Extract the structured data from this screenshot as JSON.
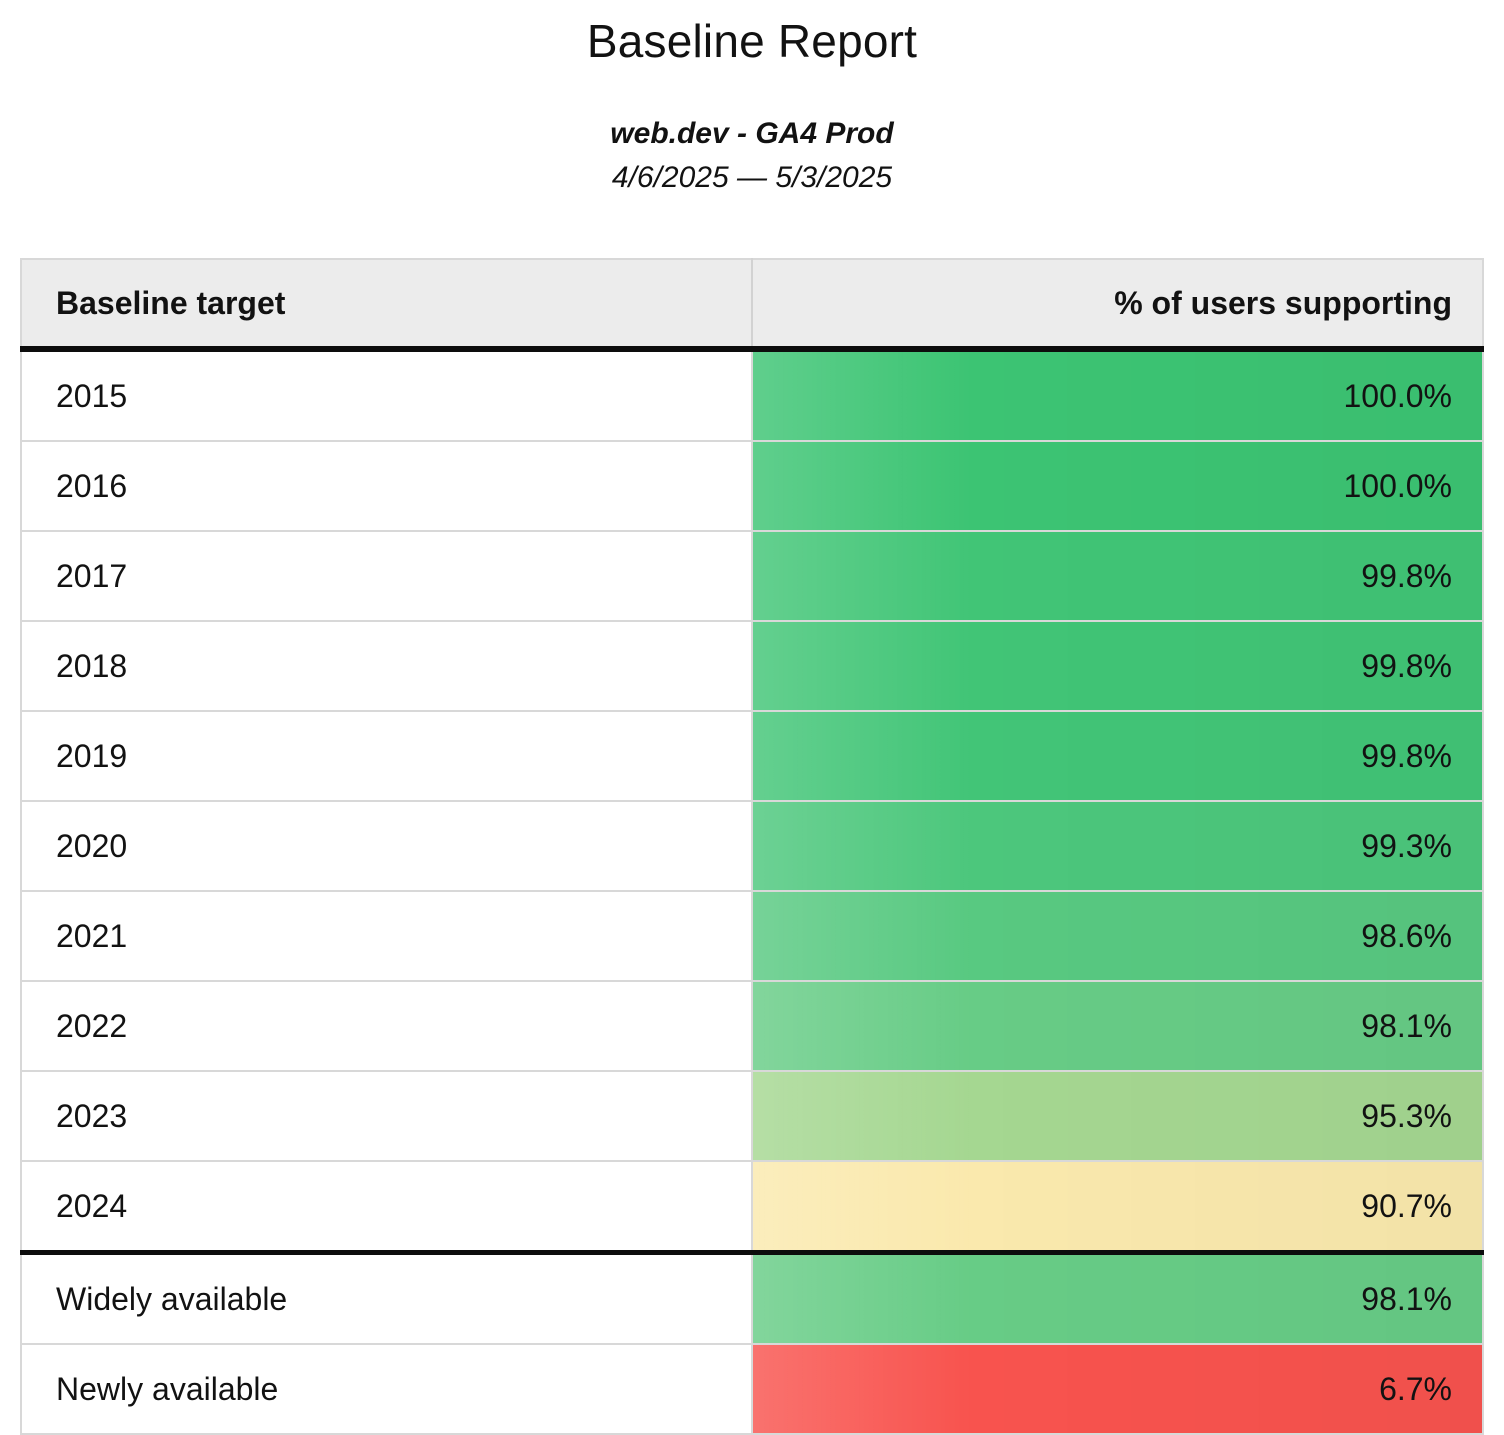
{
  "chart_data": {
    "type": "table",
    "title": "Baseline Report",
    "subtitle": "web.dev - GA4 Prod",
    "date_range": "4/6/2025 — 5/3/2025",
    "columns": [
      "Baseline target",
      "% of users supporting"
    ],
    "legend_position": "none",
    "rows": [
      {
        "label": "2015",
        "value": 100.0,
        "display": "100.0%",
        "group": "year",
        "cell_color": "#3cc473"
      },
      {
        "label": "2016",
        "value": 100.0,
        "display": "100.0%",
        "group": "year",
        "cell_color": "#3cc473"
      },
      {
        "label": "2017",
        "value": 99.8,
        "display": "99.8%",
        "group": "year",
        "cell_color": "#41c576"
      },
      {
        "label": "2018",
        "value": 99.8,
        "display": "99.8%",
        "group": "year",
        "cell_color": "#41c576"
      },
      {
        "label": "2019",
        "value": 99.8,
        "display": "99.8%",
        "group": "year",
        "cell_color": "#42c577"
      },
      {
        "label": "2020",
        "value": 99.3,
        "display": "99.3%",
        "group": "year",
        "cell_color": "#4cc77c"
      },
      {
        "label": "2021",
        "value": 98.6,
        "display": "98.6%",
        "group": "year",
        "cell_color": "#58c981"
      },
      {
        "label": "2022",
        "value": 98.1,
        "display": "98.1%",
        "group": "year",
        "cell_color": "#67cc86"
      },
      {
        "label": "2023",
        "value": 95.3,
        "display": "95.3%",
        "group": "year",
        "cell_color": "#a5d791"
      },
      {
        "label": "2024",
        "value": 90.7,
        "display": "90.7%",
        "group": "year",
        "cell_color": "#fae9ad"
      },
      {
        "label": "Widely available",
        "value": 98.1,
        "display": "98.1%",
        "group": "summary",
        "cell_color": "#67cc86"
      },
      {
        "label": "Newly available",
        "value": 6.7,
        "display": "6.7%",
        "group": "summary",
        "cell_color": "#f8534e"
      }
    ]
  }
}
